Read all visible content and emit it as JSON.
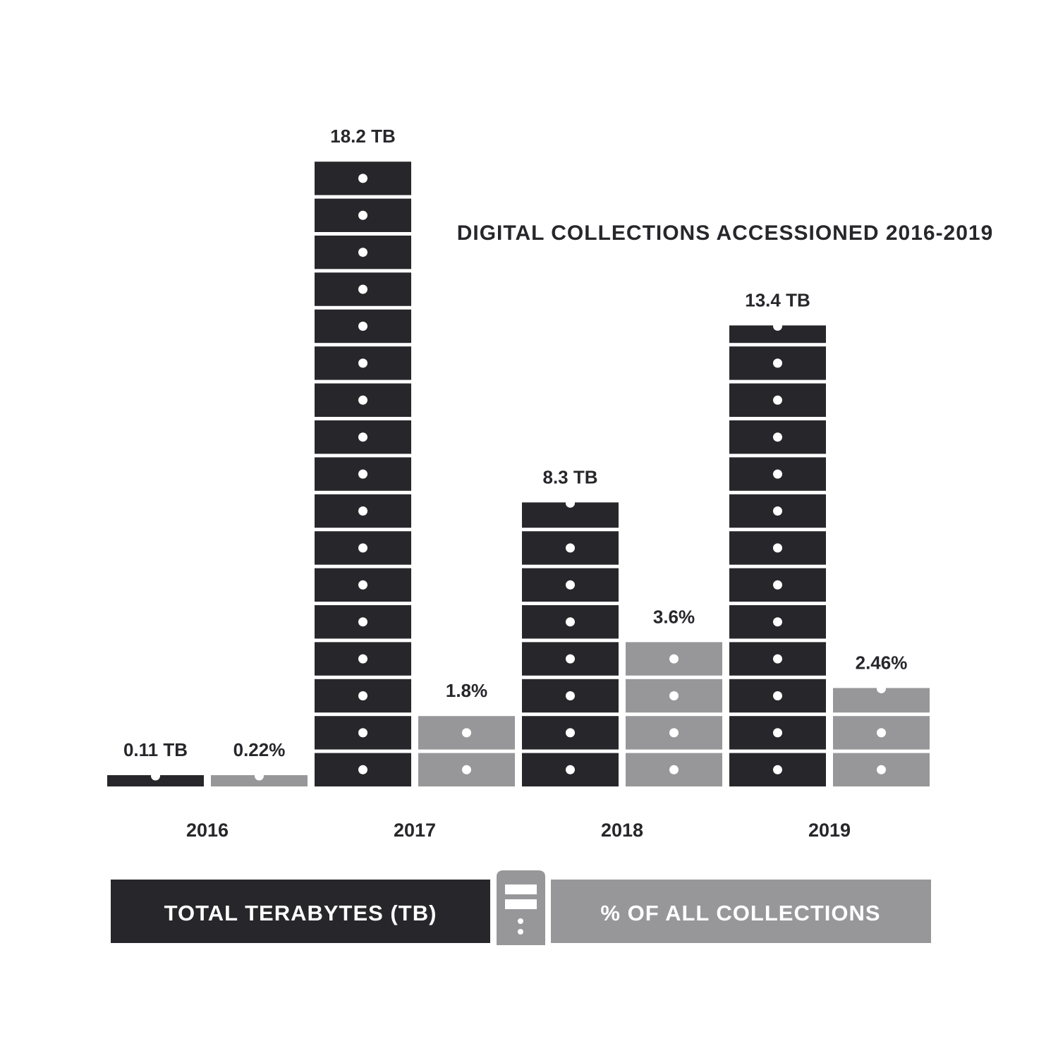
{
  "chart_data": {
    "type": "bar",
    "title": "DIGITAL COLLECTIONS ACCESSIONED 2016-2019",
    "categories": [
      "2016",
      "2017",
      "2018",
      "2019"
    ],
    "series": [
      {
        "name": "TOTAL TERABYTES (TB)",
        "values": [
          0.11,
          18.2,
          8.3,
          13.4
        ],
        "labels": [
          "0.11 TB",
          "18.2 TB",
          "8.3 TB",
          "13.4 TB"
        ],
        "color": "#27272b"
      },
      {
        "name": "% OF ALL COLLECTIONS",
        "values": [
          0.22,
          1.8,
          3.6,
          2.46
        ],
        "labels": [
          "0.22%",
          "1.8%",
          "3.6%",
          "2.46%"
        ],
        "color": "#97979a"
      }
    ],
    "units_per_block": [
      1.07,
      0.9
    ],
    "legend_position": "bottom",
    "grid": false
  },
  "legend": {
    "series_icon": "server-tower-icon"
  },
  "colors": {
    "dark": "#27272b",
    "gray": "#97979a",
    "dot": "#ffffff"
  }
}
